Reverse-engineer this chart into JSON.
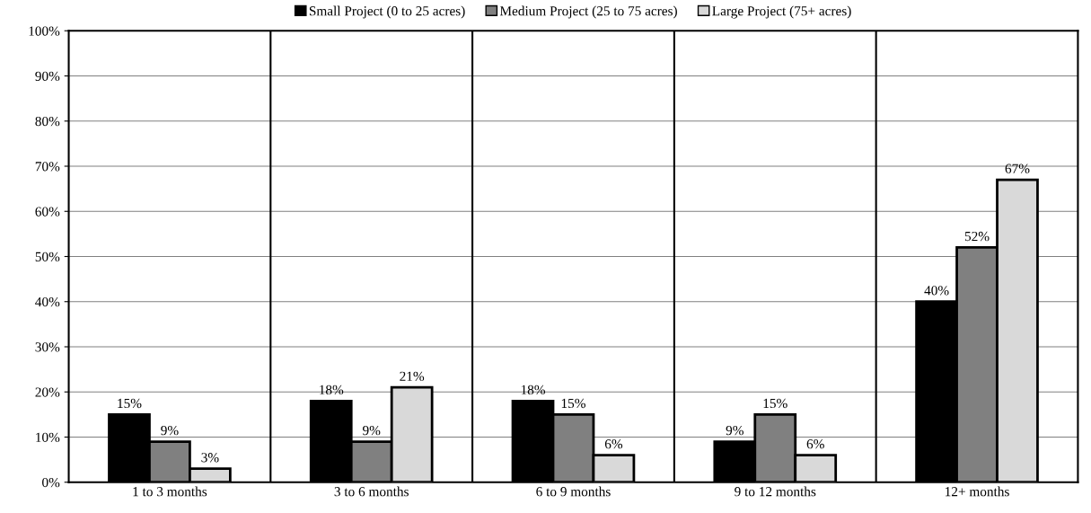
{
  "chart_data": {
    "type": "bar",
    "categories": [
      "1 to 3 months",
      "3 to 6 months",
      "6 to 9 months",
      "9 to 12 months",
      "12+ months"
    ],
    "series": [
      {
        "name": "Small Project (0 to 25 acres)",
        "color": "#000000",
        "values": [
          15,
          18,
          18,
          9,
          40
        ]
      },
      {
        "name": "Medium Project (25 to 75 acres)",
        "color": "#808080",
        "values": [
          9,
          9,
          15,
          15,
          52
        ]
      },
      {
        "name": "Large Project (75+ acres)",
        "color": "#d9d9d9",
        "values": [
          3,
          21,
          6,
          6,
          67
        ]
      }
    ],
    "ylim": [
      0,
      100
    ],
    "yticks": [
      {
        "value": 0,
        "label": "0%"
      },
      {
        "value": 10,
        "label": "10%"
      },
      {
        "value": 20,
        "label": "20%"
      },
      {
        "value": 30,
        "label": "30%"
      },
      {
        "value": 40,
        "label": "40%"
      },
      {
        "value": 50,
        "label": "50%"
      },
      {
        "value": 60,
        "label": "60%"
      },
      {
        "value": 70,
        "label": "70%"
      },
      {
        "value": 80,
        "label": "80%"
      },
      {
        "value": 90,
        "label": "90%"
      },
      {
        "value": 100,
        "label": "100%"
      }
    ],
    "value_labels": [
      [
        "15%",
        "18%",
        "18%",
        "9%",
        "40%"
      ],
      [
        "9%",
        "9%",
        "15%",
        "15%",
        "52%"
      ],
      [
        "3%",
        "21%",
        "6%",
        "6%",
        "67%"
      ]
    ],
    "grid": true,
    "legend": "top"
  }
}
